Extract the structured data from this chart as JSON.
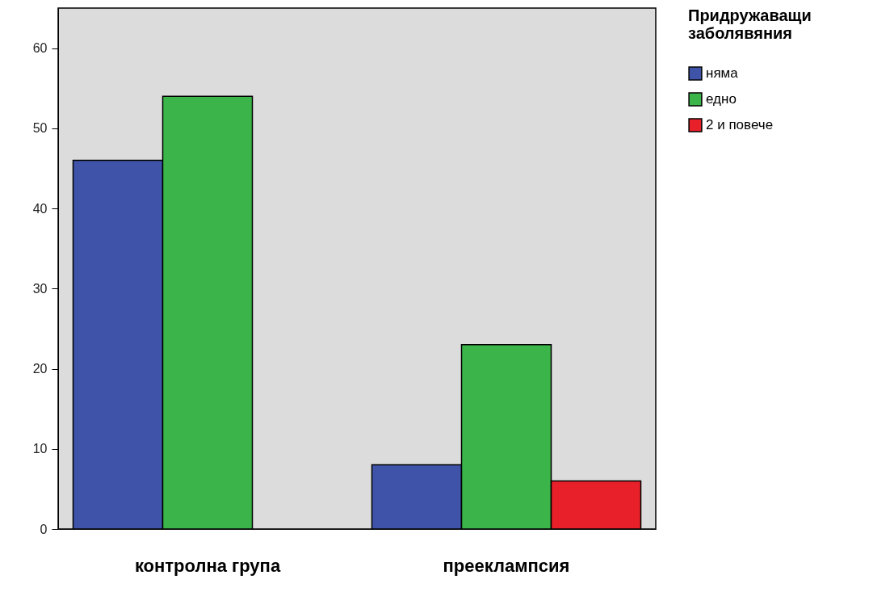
{
  "chart_data": {
    "type": "bar",
    "legend_title": "Придружаващи заболявяния",
    "categories": [
      "контролна група",
      "прееклампсия"
    ],
    "series": [
      {
        "name": "няма",
        "color": "#3f54a8",
        "values": [
          46,
          8
        ]
      },
      {
        "name": "едно",
        "color": "#3bb44a",
        "values": [
          54,
          23
        ]
      },
      {
        "name": "2 и повече",
        "color": "#e8202a",
        "values": [
          null,
          6
        ]
      }
    ],
    "ylim": [
      0,
      65
    ],
    "yticks": [
      0,
      10,
      20,
      30,
      40,
      50,
      60
    ],
    "grid": false,
    "legend": "top right"
  }
}
